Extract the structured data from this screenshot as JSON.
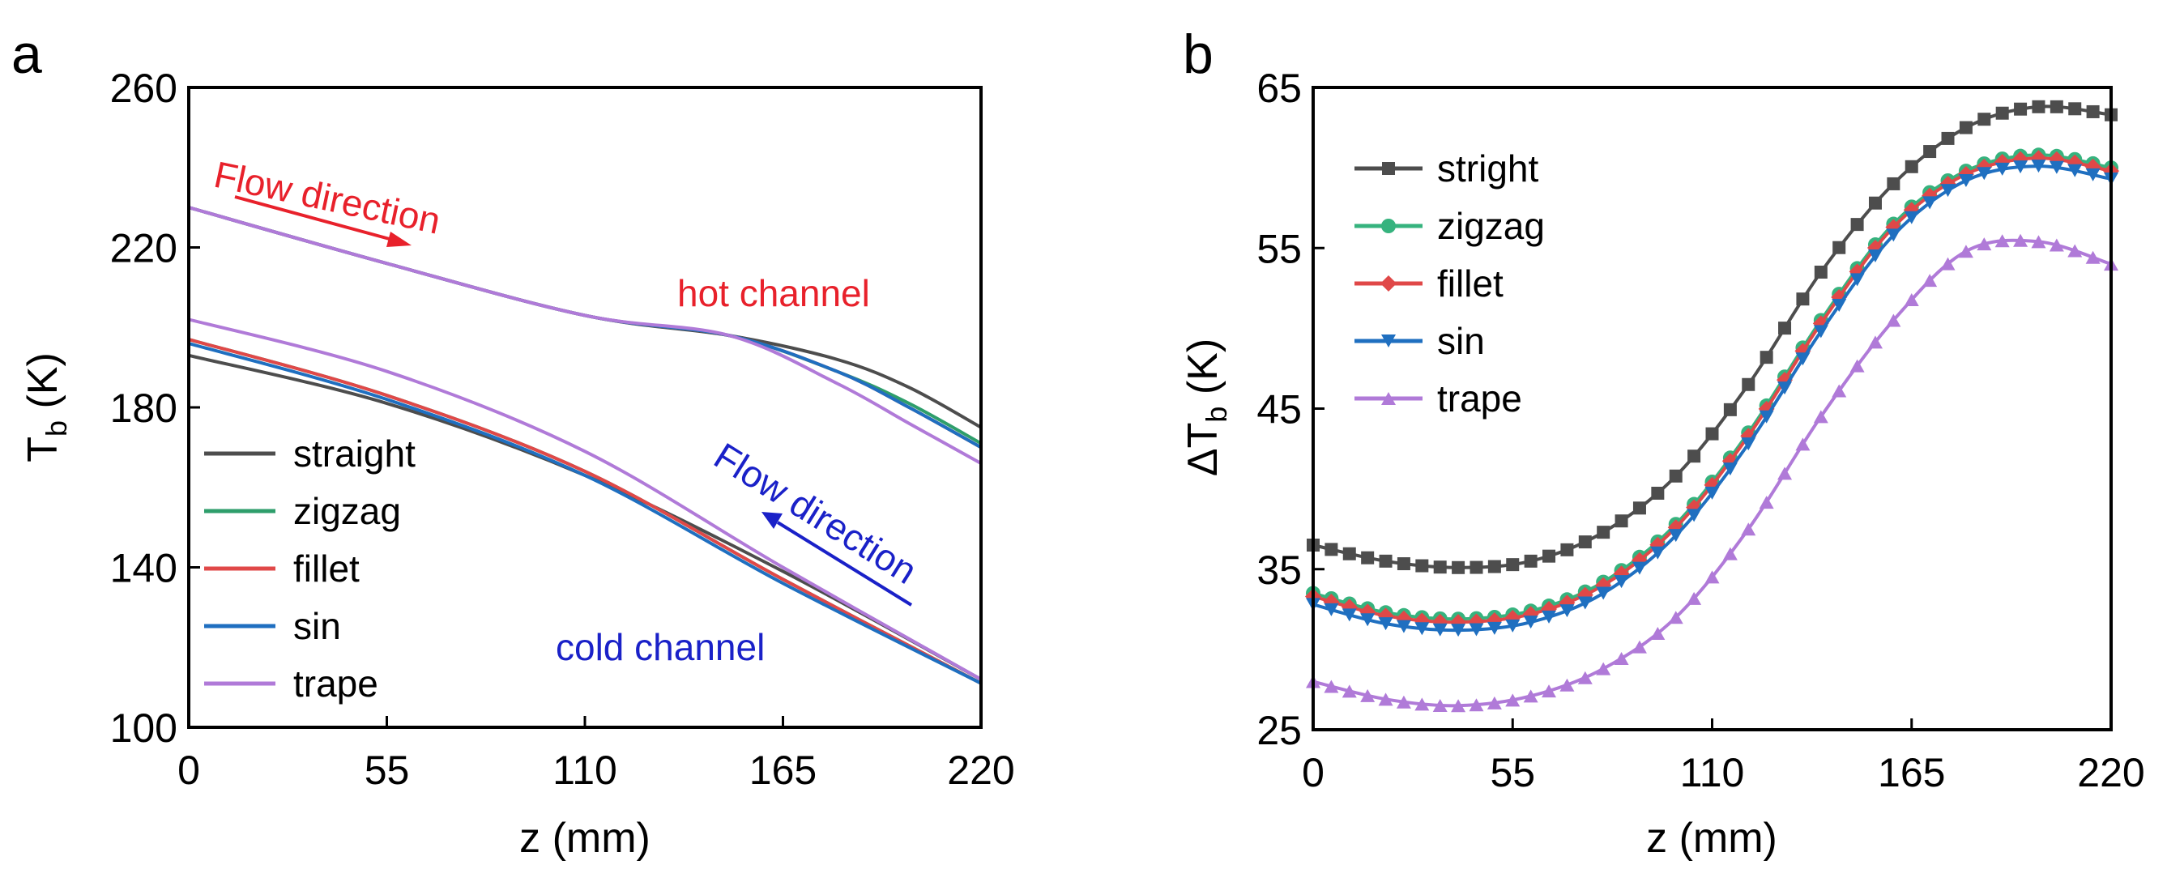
{
  "chart_data": [
    {
      "type": "line",
      "panel_label": "a",
      "title": "",
      "xlabel": "z (mm)",
      "ylabel_main": "T",
      "ylabel_sub": "b",
      "ylabel_unit": " (K)",
      "xlim": [
        0,
        220
      ],
      "ylim": [
        100,
        260
      ],
      "xticks": [
        "0",
        "55",
        "110",
        "165",
        "220"
      ],
      "yticks": [
        "100",
        "140",
        "180",
        "220",
        "260"
      ],
      "grid": false,
      "legend_position": "bottom-left",
      "annotations": {
        "flow_hot": "Flow direction",
        "flow_cold": "Flow direction",
        "hot_channel": "hot channel",
        "cold_channel": "cold channel"
      },
      "annotation_colors": {
        "hot": "#e8212b",
        "cold": "#1a21c8"
      },
      "series": [
        {
          "name": "straight",
          "color": "#4d4d4d",
          "hot": [
            [
              0,
              230
            ],
            [
              55,
              216
            ],
            [
              110,
              203
            ],
            [
              150,
              198
            ],
            [
              180,
              192
            ],
            [
              200,
              185
            ],
            [
              220,
              175
            ]
          ],
          "cold": [
            [
              0,
              193
            ],
            [
              55,
              181
            ],
            [
              110,
              163
            ],
            [
              165,
              139
            ],
            [
              220,
              112
            ]
          ]
        },
        {
          "name": "zigzag",
          "color": "#2e9e6b",
          "hot": [
            [
              0,
              230
            ],
            [
              55,
              216
            ],
            [
              110,
              203
            ],
            [
              150,
              198
            ],
            [
              180,
              189
            ],
            [
              200,
              181
            ],
            [
              220,
              171
            ]
          ],
          "cold": [
            [
              0,
              197
            ],
            [
              55,
              183
            ],
            [
              110,
              164
            ],
            [
              165,
              137
            ],
            [
              220,
              111
            ]
          ]
        },
        {
          "name": "fillet",
          "color": "#e04848",
          "hot": [
            [
              0,
              230
            ],
            [
              55,
              216
            ],
            [
              110,
              203
            ],
            [
              150,
              198
            ],
            [
              180,
              189
            ],
            [
              200,
              180
            ],
            [
              220,
              170
            ]
          ],
          "cold": [
            [
              0,
              197
            ],
            [
              55,
              183
            ],
            [
              110,
              164
            ],
            [
              165,
              137
            ],
            [
              220,
              111
            ]
          ]
        },
        {
          "name": "sin",
          "color": "#1f6fc0",
          "hot": [
            [
              0,
              230
            ],
            [
              55,
              216
            ],
            [
              110,
              203
            ],
            [
              150,
              198
            ],
            [
              180,
              189
            ],
            [
              200,
              180
            ],
            [
              220,
              170
            ]
          ],
          "cold": [
            [
              0,
              196
            ],
            [
              55,
              182
            ],
            [
              110,
              163
            ],
            [
              165,
              136
            ],
            [
              220,
              111
            ]
          ]
        },
        {
          "name": "trape",
          "color": "#b07ad8",
          "hot": [
            [
              0,
              230
            ],
            [
              55,
              216
            ],
            [
              110,
              203
            ],
            [
              150,
              198
            ],
            [
              180,
              186
            ],
            [
              200,
              176
            ],
            [
              220,
              166
            ]
          ],
          "cold": [
            [
              0,
              202
            ],
            [
              55,
              189
            ],
            [
              110,
              169
            ],
            [
              165,
              140
            ],
            [
              220,
              112
            ]
          ]
        }
      ]
    },
    {
      "type": "line",
      "panel_label": "b",
      "title": "",
      "xlabel": "z (mm)",
      "ylabel_prefix": "ΔT",
      "ylabel_sub": "b",
      "ylabel_unit": " (K)",
      "xlim": [
        0,
        220
      ],
      "ylim": [
        25,
        65
      ],
      "xticks": [
        "0",
        "55",
        "110",
        "165",
        "220"
      ],
      "yticks": [
        "25",
        "35",
        "45",
        "55",
        "65"
      ],
      "grid": false,
      "legend_position": "top-left",
      "series": [
        {
          "name": "stright",
          "color": "#4d4d4d",
          "marker": "square",
          "points": [
            [
              0,
              36.5
            ],
            [
              20,
              35.5
            ],
            [
              40,
              35.1
            ],
            [
              60,
              35.5
            ],
            [
              80,
              37.3
            ],
            [
              100,
              40.8
            ],
            [
              120,
              46.5
            ],
            [
              140,
              53.5
            ],
            [
              160,
              59
            ],
            [
              180,
              62.5
            ],
            [
              200,
              63.8
            ],
            [
              220,
              63.3
            ]
          ]
        },
        {
          "name": "zigzag",
          "color": "#36b37e",
          "marker": "circle",
          "points": [
            [
              0,
              33.5
            ],
            [
              20,
              32.3
            ],
            [
              40,
              31.9
            ],
            [
              60,
              32.4
            ],
            [
              80,
              34.2
            ],
            [
              100,
              37.8
            ],
            [
              120,
              43.5
            ],
            [
              140,
              50.5
            ],
            [
              160,
              56.5
            ],
            [
              180,
              59.8
            ],
            [
              200,
              60.8
            ],
            [
              220,
              60
            ]
          ]
        },
        {
          "name": "fillet",
          "color": "#e04848",
          "marker": "diamond",
          "points": [
            [
              0,
              33.3
            ],
            [
              20,
              32.1
            ],
            [
              40,
              31.7
            ],
            [
              60,
              32.2
            ],
            [
              80,
              34
            ],
            [
              100,
              37.6
            ],
            [
              120,
              43.3
            ],
            [
              140,
              50.3
            ],
            [
              160,
              56.3
            ],
            [
              180,
              59.6
            ],
            [
              200,
              60.6
            ],
            [
              220,
              59.8
            ]
          ]
        },
        {
          "name": "sin",
          "color": "#1f6fc0",
          "marker": "triangle-down",
          "points": [
            [
              0,
              32.8
            ],
            [
              20,
              31.6
            ],
            [
              40,
              31.2
            ],
            [
              60,
              31.7
            ],
            [
              80,
              33.5
            ],
            [
              100,
              37.1
            ],
            [
              120,
              42.8
            ],
            [
              140,
              49.8
            ],
            [
              160,
              55.8
            ],
            [
              180,
              59.2
            ],
            [
              200,
              60.1
            ],
            [
              220,
              59.3
            ]
          ]
        },
        {
          "name": "trape",
          "color": "#b07ad8",
          "marker": "triangle-up",
          "points": [
            [
              0,
              28
            ],
            [
              20,
              26.9
            ],
            [
              40,
              26.5
            ],
            [
              60,
              27.1
            ],
            [
              80,
              28.8
            ],
            [
              100,
              32
            ],
            [
              120,
              37.5
            ],
            [
              140,
              44.5
            ],
            [
              160,
              50.5
            ],
            [
              180,
              54.8
            ],
            [
              200,
              55.4
            ],
            [
              220,
              54
            ]
          ]
        }
      ]
    }
  ]
}
